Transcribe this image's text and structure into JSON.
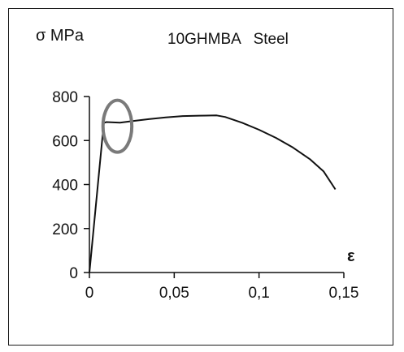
{
  "chart_data": {
    "type": "line",
    "title": "10GHMBA   Steel",
    "xlabel": "ε",
    "ylabel": "σ MPa",
    "xlim": [
      0,
      0.15
    ],
    "ylim": [
      0,
      800
    ],
    "xticks": [
      0,
      0.05,
      0.1,
      0.15
    ],
    "xtick_labels": [
      "0",
      "0,05",
      "0,1",
      "0,15"
    ],
    "yticks": [
      0,
      200,
      400,
      600,
      800
    ],
    "ytick_labels": [
      "0",
      "200",
      "400",
      "600",
      "800"
    ],
    "grid": false,
    "series": [
      {
        "x": [
          0,
          0.0085,
          0.01,
          0.018,
          0.025,
          0.035,
          0.045,
          0.055,
          0.065,
          0.075,
          0.08,
          0.09,
          0.1,
          0.11,
          0.12,
          0.13,
          0.138,
          0.145
        ],
        "y": [
          0,
          680,
          684,
          681,
          688,
          697,
          705,
          711,
          713,
          714,
          707,
          681,
          649,
          612,
          568,
          515,
          460,
          378
        ],
        "color": "#111111"
      }
    ],
    "annotations": [
      {
        "type": "ellipse",
        "cx": 0.0165,
        "cy": 665,
        "rx": 0.0085,
        "ry": 118,
        "color": "#7a7a7a"
      }
    ]
  }
}
